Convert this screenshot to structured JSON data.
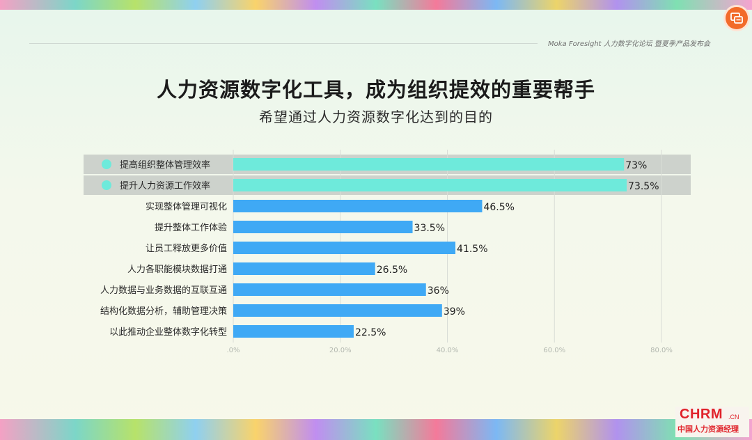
{
  "header": {
    "event_text": "Moka Foresight 人力数字化论坛 暨夏季产品发布会"
  },
  "badge": {
    "icon": "chat-export-icon",
    "color": "#f26b2a"
  },
  "logo": {
    "main": "CHRM",
    "suffix": ".CN",
    "sub": "中国人力资源经理"
  },
  "colors": {
    "highlight_bar": "#6eeadb",
    "normal_bar": "#3fa9f5",
    "highlight_row_bg": "#cdd2cc",
    "marker": "#6eeadb"
  },
  "chart_data": {
    "type": "bar",
    "orientation": "horizontal",
    "title": "人力资源数字化工具，成为组织提效的重要帮手",
    "subtitle": "希望通过人力资源数字化达到的目的",
    "categories": [
      "提高组织整体管理效率",
      "提升人力资源工作效率",
      "实现整体管理可视化",
      "提升整体工作体验",
      "让员工释放更多价值",
      "人力各职能模块数据打通",
      "人力数据与业务数据的互联互通",
      "结构化数据分析，辅助管理决策",
      "以此推动企业整体数字化转型"
    ],
    "values": [
      73,
      73.5,
      46.5,
      33.5,
      41.5,
      26.5,
      36,
      39,
      22.5
    ],
    "value_labels": [
      "73%",
      "73.5%",
      "46.5%",
      "33.5%",
      "41.5%",
      "26.5%",
      "36%",
      "39%",
      "22.5%"
    ],
    "highlighted": [
      true,
      true,
      false,
      false,
      false,
      false,
      false,
      false,
      false
    ],
    "xlim": [
      0,
      80
    ],
    "xticks": [
      0,
      20,
      40,
      60,
      80
    ],
    "xtick_labels": [
      ".0%",
      "20.0%",
      "40.0%",
      "60.0%",
      "80.0%"
    ],
    "grid": true
  }
}
